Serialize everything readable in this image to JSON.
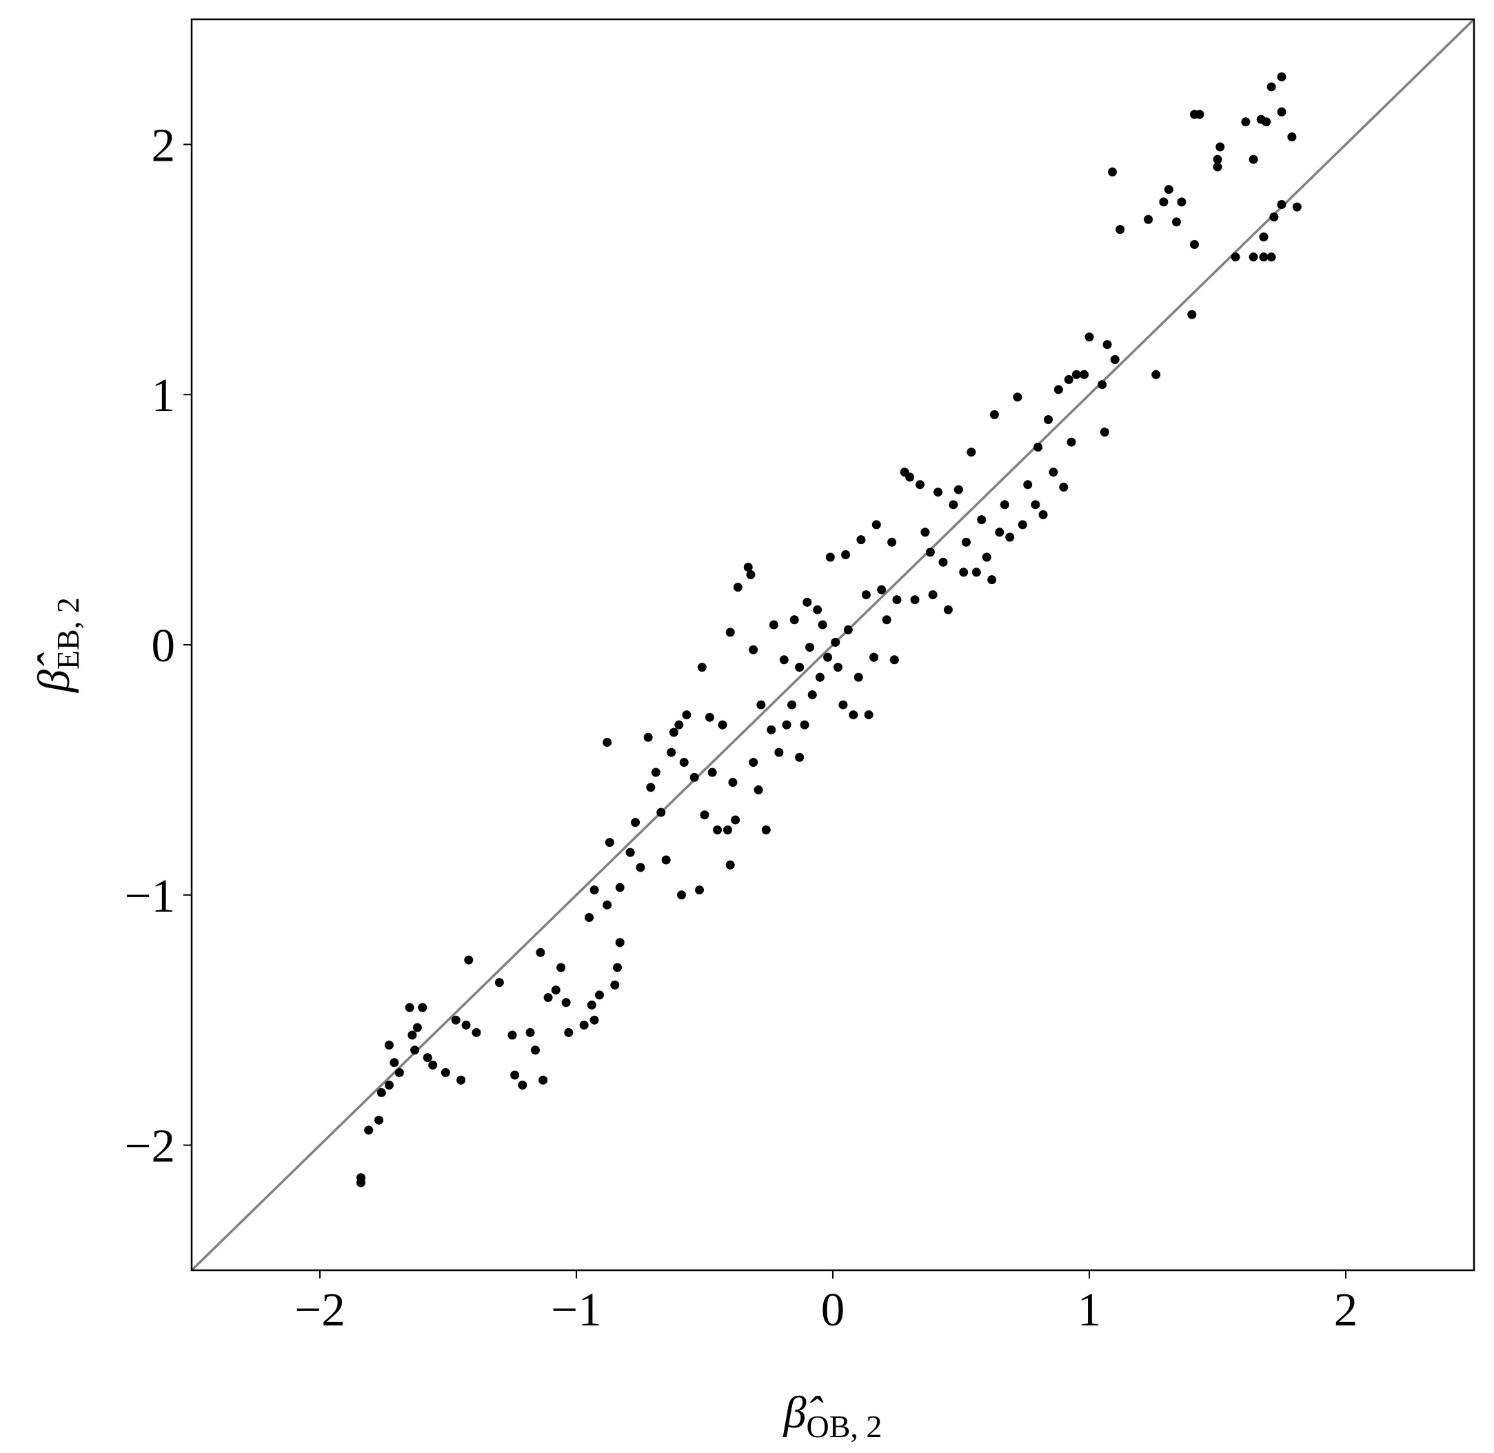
{
  "chart_data": {
    "type": "scatter",
    "x_label": {
      "symbol": "β̂",
      "subscript": "OB, 2"
    },
    "y_label": {
      "symbol": "β̂",
      "subscript": "EB, 2"
    },
    "xlim": [
      -2.5,
      2.5
    ],
    "ylim": [
      -2.5,
      2.5
    ],
    "xticks": [
      {
        "value": -2,
        "label": "−2"
      },
      {
        "value": -1,
        "label": "−1"
      },
      0,
      1,
      2
    ],
    "yticks": [
      {
        "value": -2,
        "label": "−2"
      },
      {
        "value": -1,
        "label": "−1"
      },
      0,
      1,
      2
    ],
    "color": "#000000",
    "diagonal": true,
    "diagonal_color": "#808080",
    "grid": false,
    "x": [
      -1.84,
      -1.84,
      -1.81,
      -1.77,
      -1.76,
      -1.73,
      -1.73,
      -1.71,
      -1.69,
      -1.65,
      -1.64,
      -1.62,
      -1.6,
      -1.63,
      -1.58,
      -1.56,
      -1.51,
      -1.47,
      -1.45,
      -1.43,
      -1.42,
      -1.39,
      -1.3,
      -1.25,
      -1.24,
      -1.21,
      -1.18,
      -1.14,
      -1.16,
      -1.13,
      -1.11,
      -1.08,
      -1.06,
      -1.04,
      -1.03,
      -0.97,
      -0.95,
      -0.94,
      -0.93,
      -0.93,
      -0.91,
      -0.88,
      -0.87,
      -0.85,
      -0.84,
      -0.83,
      -0.88,
      -0.83,
      -0.79,
      -0.77,
      -0.75,
      -0.72,
      -0.71,
      -0.69,
      -0.67,
      -0.65,
      -0.63,
      -0.62,
      -0.6,
      -0.59,
      -0.58,
      -0.57,
      -0.54,
      -0.52,
      -0.51,
      -0.5,
      -0.48,
      -0.47,
      -0.45,
      -0.43,
      -0.41,
      -0.4,
      -0.39,
      -0.38,
      -0.4,
      -0.37,
      -0.33,
      -0.32,
      -0.31,
      -0.31,
      -0.29,
      -0.28,
      -0.26,
      -0.24,
      -0.23,
      -0.21,
      -0.19,
      -0.18,
      -0.16,
      -0.15,
      -0.13,
      -0.13,
      -0.11,
      -0.1,
      -0.09,
      -0.08,
      -0.06,
      -0.05,
      -0.04,
      -0.02,
      -0.01,
      0.01,
      0.02,
      0.04,
      0.05,
      0.06,
      0.08,
      0.1,
      0.11,
      0.13,
      0.14,
      0.16,
      0.17,
      0.19,
      0.21,
      0.23,
      0.24,
      0.25,
      0.28,
      0.3,
      0.32,
      0.34,
      0.36,
      0.38,
      0.39,
      0.41,
      0.43,
      0.45,
      0.47,
      0.49,
      0.51,
      0.52,
      0.54,
      0.56,
      0.58,
      0.6,
      0.62,
      0.63,
      0.65,
      0.67,
      0.69,
      0.72,
      0.74,
      0.76,
      0.79,
      0.8,
      0.82,
      0.84,
      0.86,
      0.88,
      0.9,
      0.92,
      0.93,
      0.95,
      0.98,
      1.0,
      1.05,
      1.06,
      1.07,
      1.09,
      1.1,
      1.12,
      1.23,
      1.26,
      1.29,
      1.31,
      1.34,
      1.36,
      1.4,
      1.41,
      1.41,
      1.43,
      1.5,
      1.51,
      1.5,
      1.57,
      1.61,
      1.64,
      1.64,
      1.68,
      1.67,
      1.68,
      1.69,
      1.71,
      1.71,
      1.72,
      1.75,
      1.75,
      1.75,
      1.79,
      1.81
    ],
    "y": [
      -2.13,
      -2.15,
      -1.94,
      -1.9,
      -1.79,
      -1.76,
      -1.6,
      -1.67,
      -1.71,
      -1.45,
      -1.56,
      -1.53,
      -1.45,
      -1.62,
      -1.65,
      -1.68,
      -1.71,
      -1.5,
      -1.74,
      -1.52,
      -1.26,
      -1.55,
      -1.35,
      -1.56,
      -1.72,
      -1.76,
      -1.55,
      -1.23,
      -1.62,
      -1.74,
      -1.41,
      -1.38,
      -1.29,
      -1.43,
      -1.55,
      -1.52,
      -1.09,
      -1.44,
      -1.5,
      -0.98,
      -1.4,
      -1.04,
      -0.79,
      -1.36,
      -1.29,
      -1.19,
      -0.39,
      -0.97,
      -0.83,
      -0.71,
      -0.89,
      -0.37,
      -0.57,
      -0.51,
      -0.67,
      -0.86,
      -0.43,
      -0.35,
      -0.32,
      -1.0,
      -0.47,
      -0.28,
      -0.53,
      -0.98,
      -0.09,
      -0.68,
      -0.29,
      -0.51,
      -0.74,
      -0.32,
      -0.74,
      0.05,
      -0.55,
      -0.7,
      -0.88,
      0.23,
      0.31,
      0.28,
      -0.02,
      -0.47,
      -0.58,
      -0.24,
      -0.74,
      -0.34,
      0.08,
      -0.43,
      -0.06,
      -0.32,
      -0.24,
      0.1,
      -0.09,
      -0.45,
      -0.32,
      0.17,
      -0.01,
      -0.2,
      0.14,
      -0.13,
      0.08,
      -0.05,
      0.35,
      0.01,
      -0.09,
      -0.24,
      0.36,
      0.06,
      -0.28,
      -0.13,
      0.42,
      0.2,
      -0.28,
      -0.05,
      0.48,
      0.22,
      0.1,
      0.41,
      -0.06,
      0.18,
      0.69,
      0.67,
      0.18,
      0.64,
      0.45,
      0.37,
      0.2,
      0.61,
      0.33,
      0.14,
      0.56,
      0.62,
      0.29,
      0.41,
      0.77,
      0.29,
      0.5,
      0.35,
      0.26,
      0.92,
      0.45,
      0.56,
      0.43,
      0.99,
      0.48,
      0.64,
      0.56,
      0.79,
      0.52,
      0.9,
      0.69,
      1.02,
      0.63,
      1.06,
      0.81,
      1.08,
      1.08,
      1.23,
      1.04,
      0.85,
      1.2,
      1.89,
      1.14,
      1.66,
      1.7,
      1.08,
      1.77,
      1.82,
      1.69,
      1.77,
      1.32,
      1.6,
      2.12,
      2.12,
      1.91,
      1.99,
      1.94,
      1.55,
      2.09,
      1.94,
      1.55,
      1.55,
      2.1,
      1.63,
      2.09,
      1.55,
      2.23,
      1.71,
      2.27,
      1.76,
      2.13,
      2.03,
      1.75
    ]
  }
}
